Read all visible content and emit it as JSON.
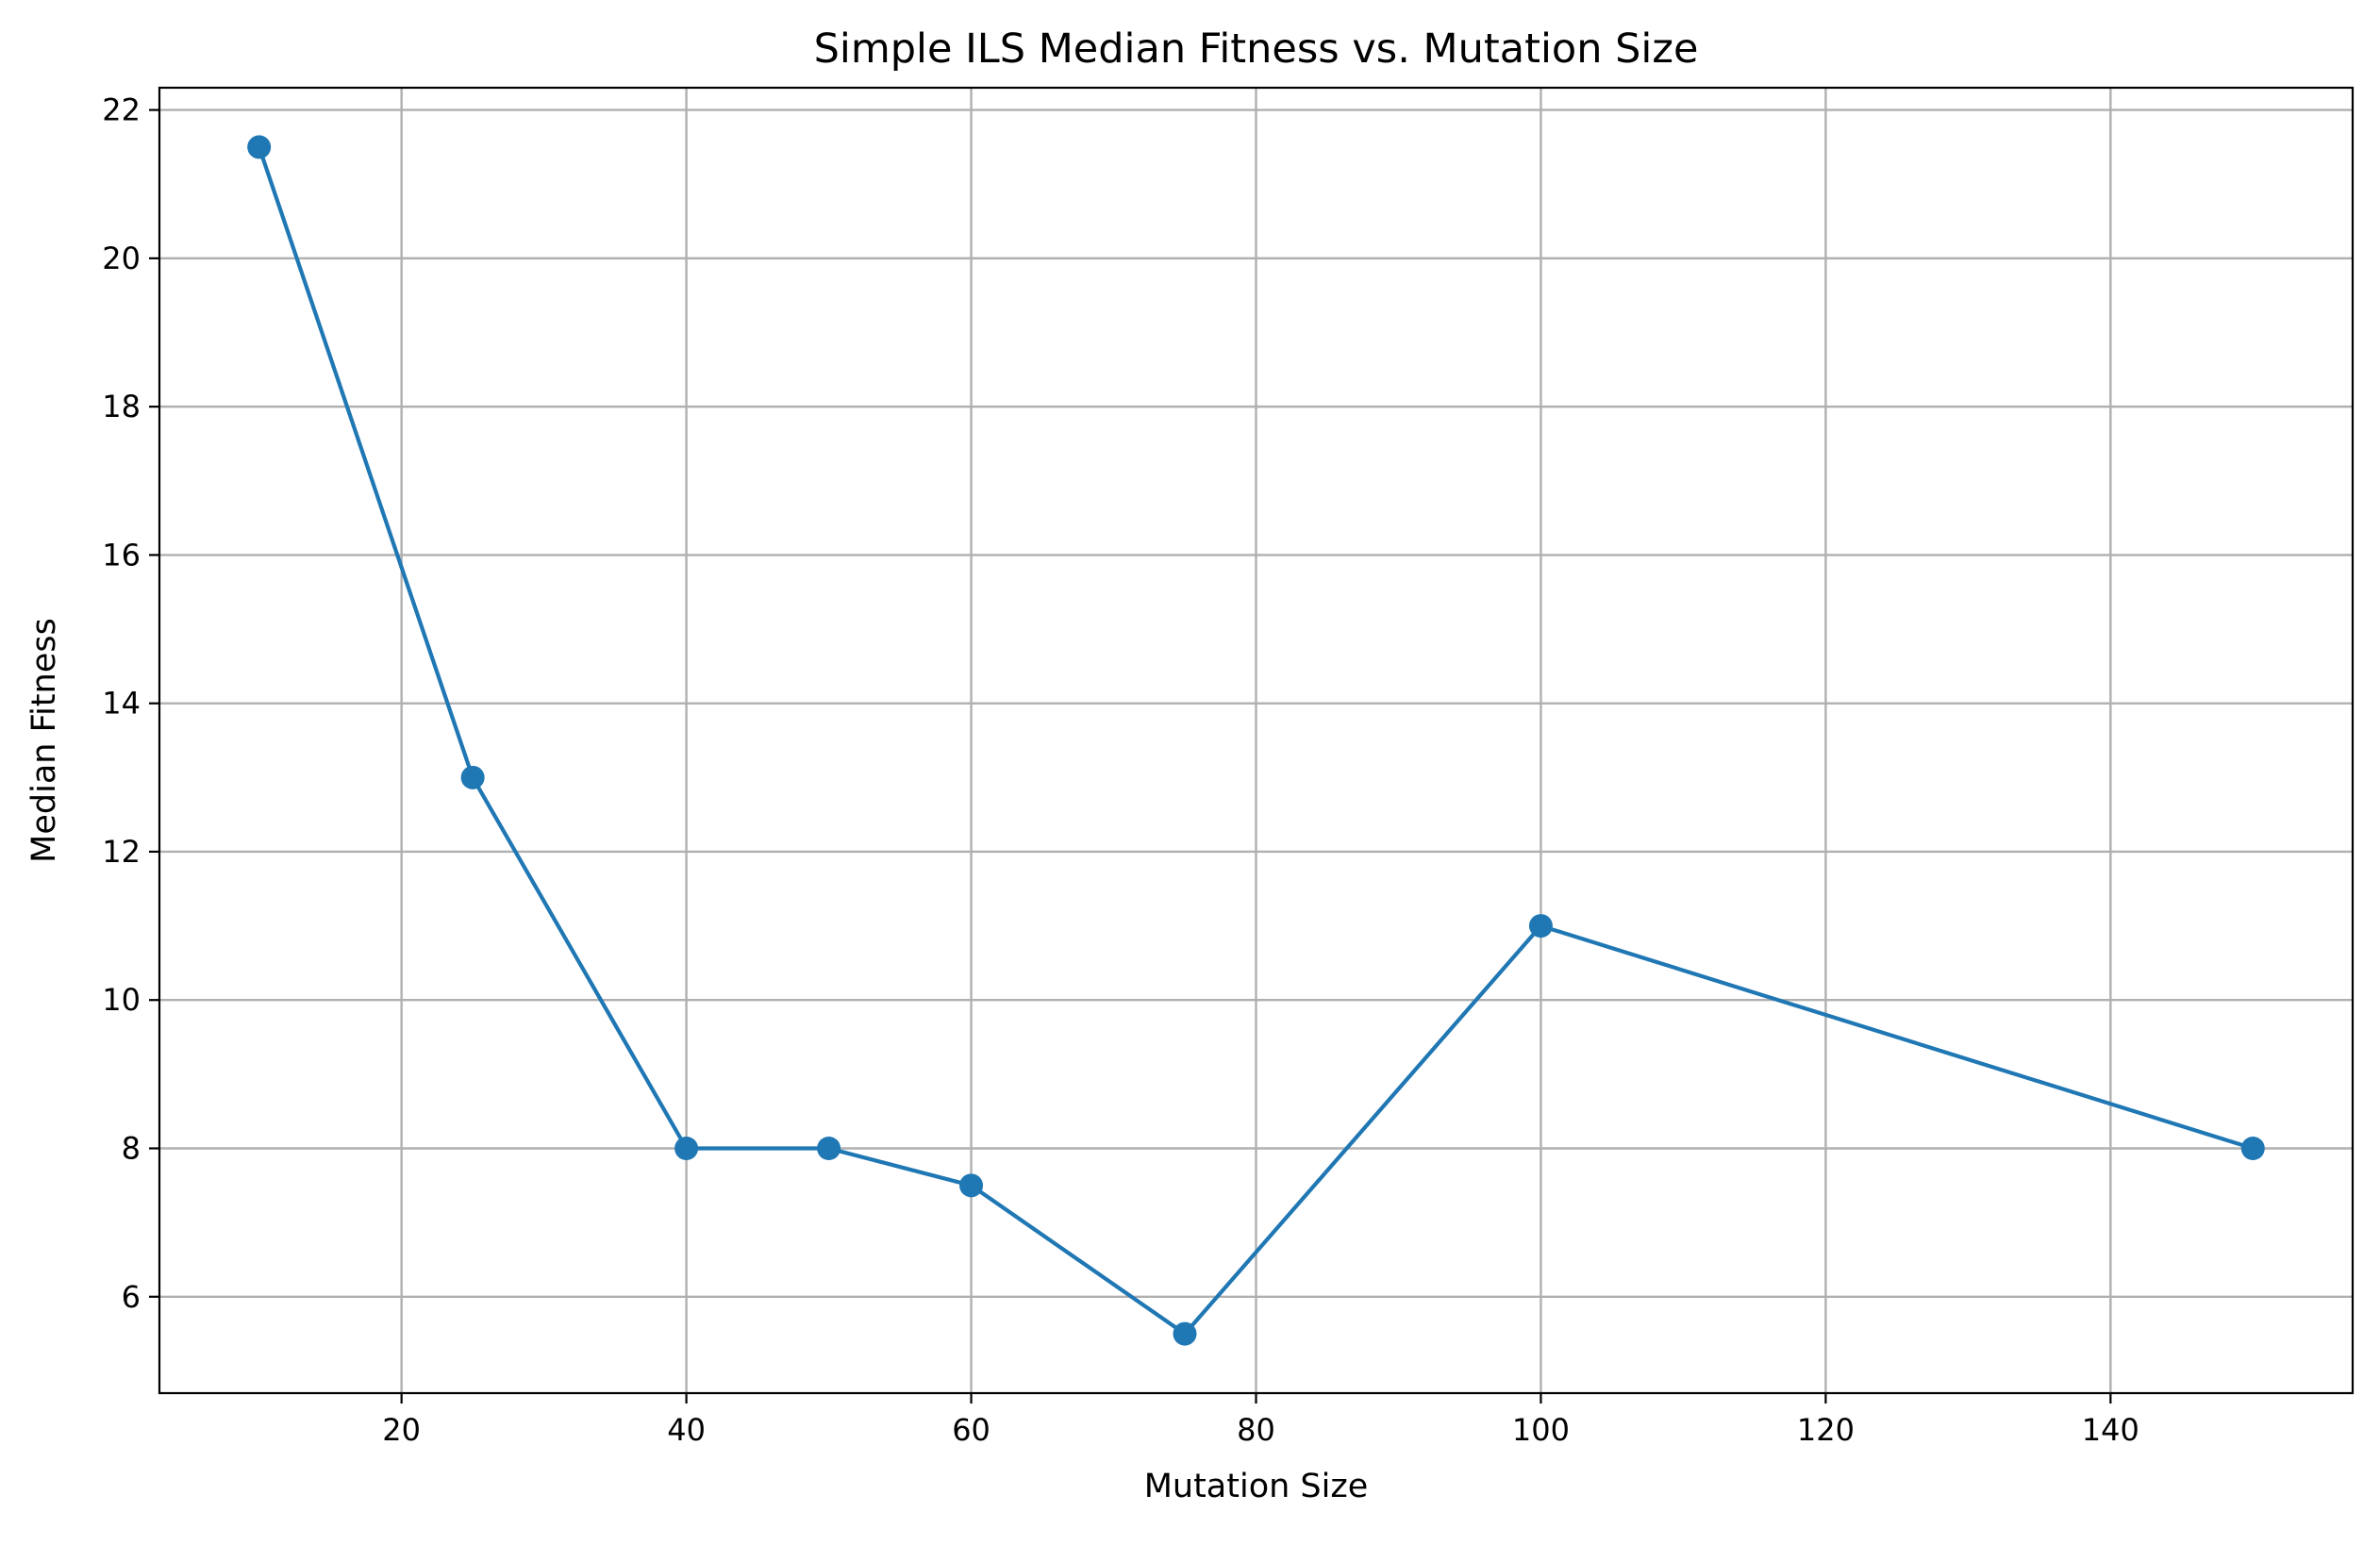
{
  "chart_data": {
    "type": "line",
    "title": "Simple ILS Median Fitness vs. Mutation Size",
    "xlabel": "Mutation Size",
    "ylabel": "Median Fitness",
    "xlim": [
      3,
      157
    ],
    "ylim": [
      4.7,
      22.3
    ],
    "xticks": [
      20,
      40,
      60,
      80,
      100,
      120,
      140
    ],
    "yticks": [
      6,
      8,
      10,
      12,
      14,
      16,
      18,
      20,
      22
    ],
    "grid": true,
    "series": [
      {
        "color": "#1f77b4",
        "marker": "circle",
        "x": [
          10,
          25,
          40,
          50,
          60,
          75,
          100,
          150
        ],
        "y": [
          21.5,
          13,
          8,
          8,
          7.5,
          5.5,
          11,
          8
        ]
      }
    ]
  }
}
